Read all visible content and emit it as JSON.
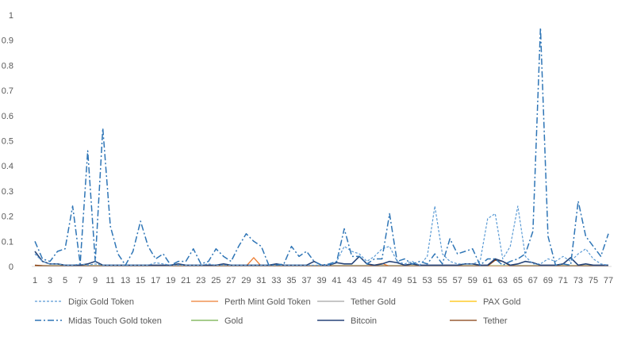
{
  "chart_data": {
    "type": "line",
    "title": "",
    "xlabel": "",
    "ylabel": "",
    "x": [
      1,
      2,
      3,
      4,
      5,
      6,
      7,
      8,
      9,
      10,
      11,
      12,
      13,
      14,
      15,
      16,
      17,
      18,
      19,
      20,
      21,
      22,
      23,
      24,
      25,
      26,
      27,
      28,
      29,
      30,
      31,
      32,
      33,
      34,
      35,
      36,
      37,
      38,
      39,
      40,
      41,
      42,
      43,
      44,
      45,
      46,
      47,
      48,
      49,
      50,
      51,
      52,
      53,
      54,
      55,
      56,
      57,
      58,
      59,
      60,
      61,
      62,
      63,
      64,
      65,
      66,
      67,
      68,
      69,
      70,
      71,
      72,
      73,
      74,
      75,
      76,
      77
    ],
    "x_tick_labels": [
      "1",
      "3",
      "5",
      "7",
      "9",
      "11",
      "13",
      "15",
      "17",
      "19",
      "21",
      "23",
      "25",
      "27",
      "29",
      "31",
      "33",
      "35",
      "37",
      "39",
      "41",
      "43",
      "45",
      "47",
      "49",
      "51",
      "53",
      "55",
      "57",
      "59",
      "61",
      "63",
      "65",
      "67",
      "69",
      "71",
      "73",
      "75",
      "77"
    ],
    "y_tick_labels": [
      "0",
      "0.1",
      "0.2",
      "0.3",
      "0.4",
      "0.5",
      "0.6",
      "0.7",
      "0.8",
      "0.9",
      "1"
    ],
    "ylim": [
      0,
      1
    ],
    "grid": false,
    "legend_position": "bottom",
    "series": [
      {
        "name": "Digix Gold Token",
        "color": "#5B9BD5",
        "dash": "3,2",
        "width": 1.2,
        "values": [
          0.05,
          0.02,
          0.01,
          0.01,
          0.005,
          0.005,
          0.01,
          0.005,
          0.01,
          0.005,
          0.005,
          0.005,
          0.005,
          0.005,
          0.005,
          0.005,
          0.015,
          0.01,
          0.005,
          0.005,
          0.005,
          0.005,
          0.005,
          0.01,
          0.005,
          0.005,
          0.005,
          0.005,
          0.005,
          0.005,
          0.005,
          0.005,
          0.005,
          0.005,
          0.005,
          0.005,
          0.005,
          0.005,
          0.005,
          0.005,
          0.02,
          0.08,
          0.06,
          0.05,
          0.02,
          0.04,
          0.07,
          0.08,
          0.02,
          0.01,
          0.02,
          0.005,
          0.04,
          0.24,
          0.05,
          0.02,
          0.01,
          0.01,
          0.01,
          0.02,
          0.19,
          0.21,
          0.03,
          0.08,
          0.24,
          0.04,
          0.01,
          0.01,
          0.03,
          0.02,
          0.04,
          0.02,
          0.05,
          0.07,
          0.03,
          0.01,
          0.005
        ]
      },
      {
        "name": "Perth Mint Gold Token",
        "color": "#ED7D31",
        "dash": "",
        "width": 1.3,
        "values": [
          0.002,
          0.001,
          0.001,
          0.001,
          0.001,
          0.001,
          0.001,
          0.001,
          0.001,
          0.001,
          0.001,
          0.001,
          0.001,
          0.001,
          0.001,
          0.001,
          0.001,
          0.001,
          0.001,
          0.001,
          0.001,
          0.001,
          0.001,
          0.001,
          0.001,
          0.001,
          0.001,
          0.001,
          0.001,
          0.035,
          0.001,
          0.001,
          0.001,
          0.001,
          0.001,
          0.001,
          0.001,
          0.001,
          0.001,
          0.001,
          0.001,
          0.001,
          0.001,
          0.001,
          0.001,
          0.005,
          0.012,
          0.001,
          0.001,
          0.001,
          0.001,
          0.001,
          0.001,
          0.001,
          0.001,
          0.001,
          0.001,
          0.001,
          0.001,
          0.001,
          0.001,
          0.001,
          0.001,
          0.001,
          0.001,
          0.001,
          0.001,
          0.001,
          0.001,
          0.001,
          0.001,
          0.001,
          0.001,
          0.001,
          0.001,
          0.001,
          0.001
        ]
      },
      {
        "name": "Tether Gold",
        "color": "#A5A5A5",
        "dash": "",
        "width": 1.3,
        "values": [
          0.002,
          0.002,
          0.002,
          0.002,
          0.002,
          0.002,
          0.002,
          0.002,
          0.002,
          0.002,
          0.002,
          0.002,
          0.002,
          0.002,
          0.002,
          0.002,
          0.002,
          0.002,
          0.002,
          0.002,
          0.002,
          0.002,
          0.002,
          0.002,
          0.002,
          0.002,
          0.002,
          0.002,
          0.002,
          0.002,
          0.002,
          0.002,
          0.002,
          0.002,
          0.002,
          0.002,
          0.002,
          0.002,
          0.002,
          0.002,
          0.002,
          0.002,
          0.002,
          0.002,
          0.002,
          0.002,
          0.002,
          0.002,
          0.002,
          0.002,
          0.002,
          0.002,
          0.002,
          0.002,
          0.002,
          0.002,
          0.002,
          0.002,
          0.002,
          0.002,
          0.002,
          0.002,
          0.002,
          0.002,
          0.002,
          0.002,
          0.002,
          0.002,
          0.002,
          0.002,
          0.002,
          0.002,
          0.002,
          0.002,
          0.002,
          0.002,
          0.002
        ]
      },
      {
        "name": "PAX Gold",
        "color": "#FFC000",
        "dash": "",
        "width": 1.3,
        "values": [
          0.001,
          0.001,
          0.001,
          0.001,
          0.001,
          0.001,
          0.001,
          0.001,
          0.001,
          0.001,
          0.001,
          0.001,
          0.001,
          0.001,
          0.001,
          0.001,
          0.001,
          0.001,
          0.001,
          0.001,
          0.001,
          0.001,
          0.001,
          0.001,
          0.001,
          0.001,
          0.001,
          0.001,
          0.001,
          0.001,
          0.001,
          0.001,
          0.001,
          0.001,
          0.001,
          0.001,
          0.001,
          0.001,
          0.001,
          0.001,
          0.001,
          0.001,
          0.001,
          0.001,
          0.001,
          0.001,
          0.001,
          0.001,
          0.001,
          0.001,
          0.001,
          0.001,
          0.001,
          0.001,
          0.001,
          0.001,
          0.001,
          0.001,
          0.001,
          0.001,
          0.001,
          0.001,
          0.001,
          0.001,
          0.001,
          0.001,
          0.001,
          0.001,
          0.001,
          0.001,
          0.001,
          0.001,
          0.001,
          0.001,
          0.001,
          0.001,
          0.001
        ]
      },
      {
        "name": "Midas Touch Gold token",
        "color": "#2E75B6",
        "dash": "8,3,2,3",
        "width": 1.5,
        "values": [
          0.1,
          0.03,
          0.02,
          0.06,
          0.07,
          0.24,
          0.01,
          0.46,
          0.02,
          0.55,
          0.16,
          0.05,
          0.005,
          0.06,
          0.18,
          0.08,
          0.03,
          0.05,
          0.005,
          0.02,
          0.02,
          0.07,
          0.01,
          0.02,
          0.07,
          0.04,
          0.02,
          0.08,
          0.13,
          0.1,
          0.08,
          0.005,
          0.005,
          0.01,
          0.08,
          0.04,
          0.06,
          0.02,
          0.005,
          0.01,
          0.02,
          0.15,
          0.04,
          0.04,
          0.01,
          0.03,
          0.03,
          0.21,
          0.02,
          0.03,
          0.01,
          0.02,
          0.01,
          0.05,
          0.01,
          0.11,
          0.05,
          0.06,
          0.07,
          0.005,
          0.03,
          0.03,
          0.005,
          0.02,
          0.03,
          0.05,
          0.14,
          0.95,
          0.12,
          0.005,
          0.01,
          0.005,
          0.26,
          0.12,
          0.08,
          0.04,
          0.13
        ]
      },
      {
        "name": "Gold",
        "color": "#70AD47",
        "dash": "",
        "width": 1.3,
        "values": [
          0.003,
          0.003,
          0.003,
          0.003,
          0.003,
          0.003,
          0.003,
          0.003,
          0.003,
          0.003,
          0.003,
          0.003,
          0.003,
          0.003,
          0.003,
          0.003,
          0.003,
          0.003,
          0.003,
          0.003,
          0.003,
          0.003,
          0.003,
          0.003,
          0.003,
          0.003,
          0.003,
          0.003,
          0.003,
          0.003,
          0.003,
          0.003,
          0.003,
          0.003,
          0.003,
          0.003,
          0.003,
          0.003,
          0.003,
          0.003,
          0.003,
          0.003,
          0.003,
          0.003,
          0.003,
          0.003,
          0.003,
          0.003,
          0.003,
          0.003,
          0.003,
          0.003,
          0.003,
          0.003,
          0.003,
          0.003,
          0.003,
          0.003,
          0.003,
          0.003,
          0.003,
          0.003,
          0.003,
          0.003,
          0.003,
          0.003,
          0.003,
          0.003,
          0.003,
          0.003,
          0.003,
          0.003,
          0.003,
          0.003,
          0.003,
          0.003,
          0.003
        ]
      },
      {
        "name": "Bitcoin",
        "color": "#264478",
        "dash": "",
        "width": 1.6,
        "values": [
          0.06,
          0.02,
          0.01,
          0.01,
          0.005,
          0.005,
          0.005,
          0.01,
          0.02,
          0.005,
          0.005,
          0.005,
          0.005,
          0.005,
          0.005,
          0.005,
          0.005,
          0.005,
          0.005,
          0.01,
          0.005,
          0.005,
          0.005,
          0.005,
          0.005,
          0.01,
          0.005,
          0.005,
          0.005,
          0.005,
          0.005,
          0.005,
          0.01,
          0.005,
          0.005,
          0.005,
          0.005,
          0.02,
          0.005,
          0.005,
          0.015,
          0.01,
          0.01,
          0.04,
          0.01,
          0.005,
          0.01,
          0.02,
          0.015,
          0.005,
          0.01,
          0.005,
          0.005,
          0.005,
          0.005,
          0.005,
          0.005,
          0.01,
          0.01,
          0.005,
          0.005,
          0.03,
          0.02,
          0.005,
          0.01,
          0.02,
          0.015,
          0.005,
          0.005,
          0.005,
          0.01,
          0.035,
          0.005,
          0.01,
          0.005,
          0.005,
          0.005
        ]
      },
      {
        "name": "Tether",
        "color": "#843C0C",
        "dash": "",
        "width": 1.3,
        "values": [
          0.005,
          0.003,
          0.002,
          0.002,
          0.002,
          0.002,
          0.002,
          0.002,
          0.002,
          0.002,
          0.002,
          0.002,
          0.002,
          0.002,
          0.002,
          0.002,
          0.002,
          0.002,
          0.002,
          0.002,
          0.002,
          0.002,
          0.002,
          0.002,
          0.002,
          0.002,
          0.002,
          0.002,
          0.002,
          0.002,
          0.002,
          0.002,
          0.002,
          0.002,
          0.002,
          0.002,
          0.002,
          0.002,
          0.002,
          0.002,
          0.002,
          0.002,
          0.002,
          0.002,
          0.002,
          0.002,
          0.002,
          0.002,
          0.002,
          0.002,
          0.002,
          0.002,
          0.002,
          0.002,
          0.002,
          0.002,
          0.002,
          0.002,
          0.002,
          0.002,
          0.002,
          0.025,
          0.02,
          0.002,
          0.002,
          0.002,
          0.002,
          0.002,
          0.002,
          0.002,
          0.002,
          0.002,
          0.002,
          0.002,
          0.002,
          0.002,
          0.002
        ]
      }
    ]
  }
}
